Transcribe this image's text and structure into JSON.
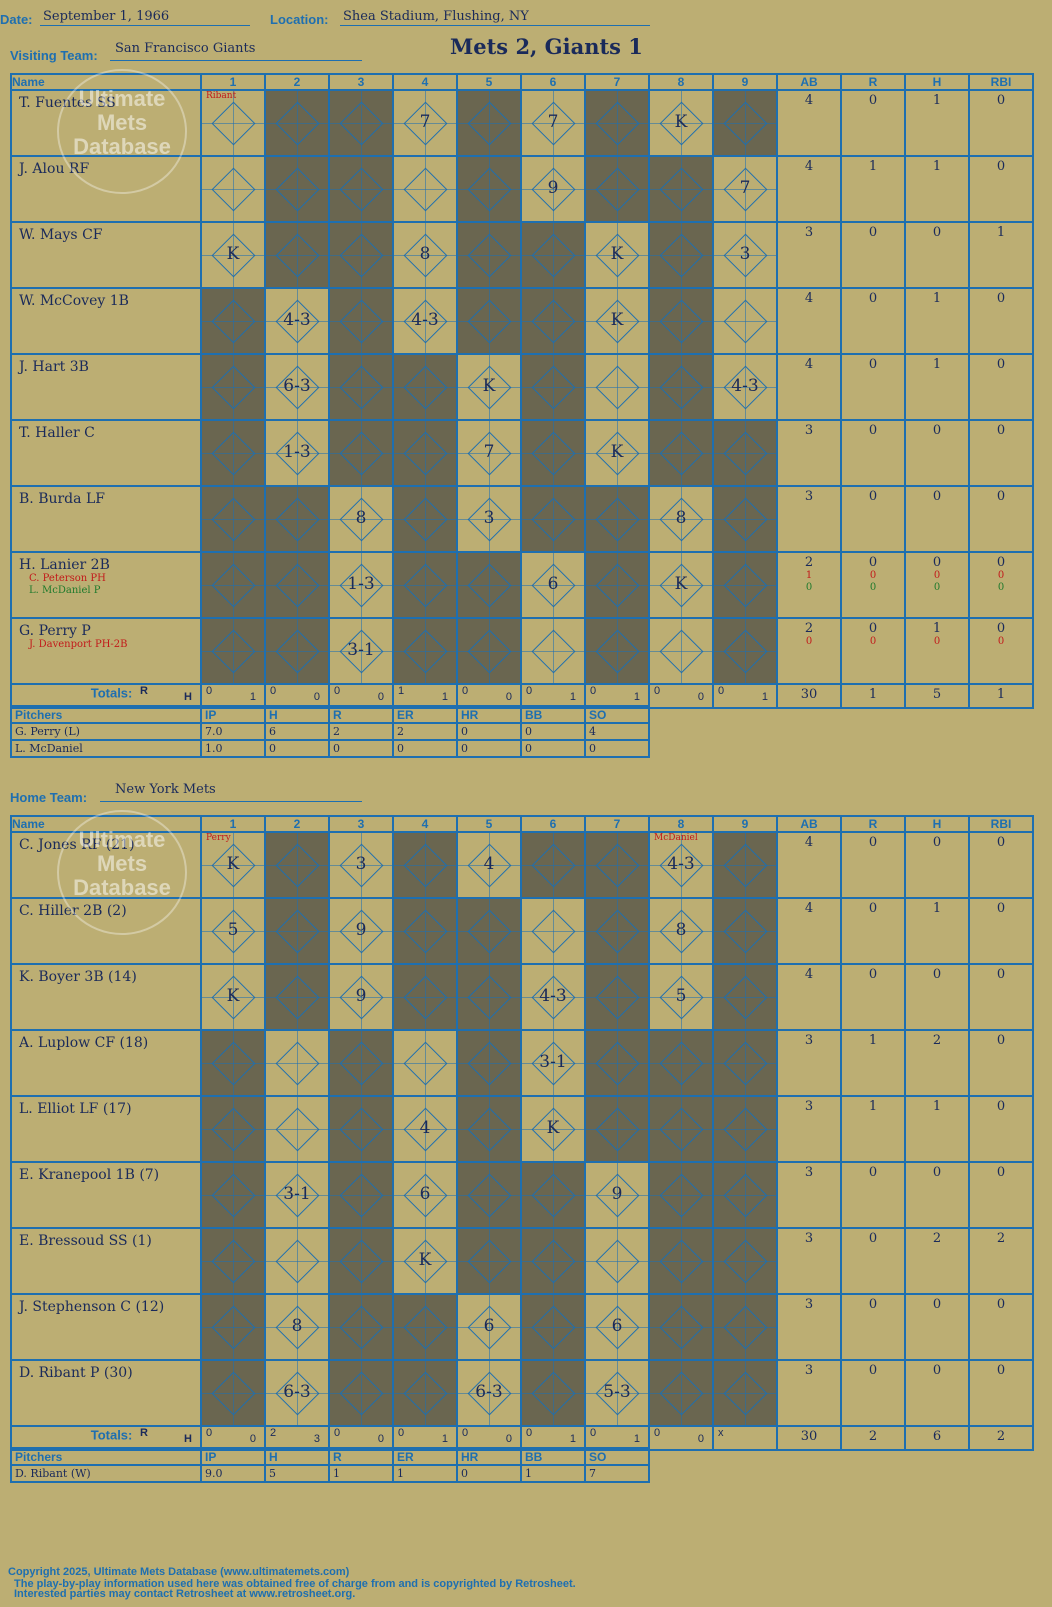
{
  "header": {
    "date_label": "Date:",
    "date": "September 1, 1966",
    "location_label": "Location:",
    "location": "Shea Stadium, Flushing, NY",
    "title": "Mets 2, Giants 1"
  },
  "visiting": {
    "label": "Visiting Team:",
    "team": "San Francisco Giants",
    "columns": [
      "Name",
      "1",
      "2",
      "3",
      "4",
      "5",
      "6",
      "7",
      "8",
      "9",
      "AB",
      "R",
      "H",
      "RBI"
    ],
    "rows": [
      {
        "name": "T. Fuentes SS",
        "stats": [
          "4",
          "0",
          "1",
          "0"
        ],
        "pitcher": "Ribant",
        "cells": {
          "1": "",
          "4": "7",
          "6": "7",
          "8": "K"
        }
      },
      {
        "name": "J. Alou RF",
        "stats": [
          "4",
          "1",
          "1",
          "0"
        ],
        "cells": {
          "1": "",
          "4": "",
          "6": "9",
          "9": "7"
        }
      },
      {
        "name": "W. Mays CF",
        "stats": [
          "3",
          "0",
          "0",
          "1"
        ],
        "cells": {
          "1": "K",
          "4": "8",
          "7": "K",
          "9": "3"
        }
      },
      {
        "name": "W. McCovey 1B",
        "stats": [
          "4",
          "0",
          "1",
          "0"
        ],
        "cells": {
          "2": "4-3",
          "4": "4-3",
          "7": "K",
          "9": ""
        }
      },
      {
        "name": "J. Hart 3B",
        "stats": [
          "4",
          "0",
          "1",
          "0"
        ],
        "cells": {
          "2": "6-3",
          "5": "K",
          "7": "",
          "9": "4-3"
        }
      },
      {
        "name": "T. Haller C",
        "stats": [
          "3",
          "0",
          "0",
          "0"
        ],
        "cells": {
          "2": "1-3",
          "5": "7",
          "7": "K"
        }
      },
      {
        "name": "B. Burda LF",
        "stats": [
          "3",
          "0",
          "0",
          "0"
        ],
        "cells": {
          "3": "8",
          "5": "3",
          "8": "8"
        }
      },
      {
        "name": "H. Lanier 2B",
        "subs": [
          {
            "name": "C. Peterson PH",
            "color": "red",
            "stats": [
              "1",
              "0",
              "0",
              "0"
            ]
          },
          {
            "name": "L. McDaniel P",
            "color": "green",
            "stats": [
              "0",
              "0",
              "0",
              "0"
            ]
          }
        ],
        "stats": [
          "2",
          "0",
          "0",
          "0"
        ],
        "cells": {
          "3": "1-3",
          "6": "6",
          "8": "K"
        }
      },
      {
        "name": "G. Perry P",
        "subs": [
          {
            "name": "J. Davenport PH-2B",
            "color": "red",
            "stats": [
              "0",
              "0",
              "0",
              "0"
            ]
          }
        ],
        "stats": [
          "2",
          "0",
          "1",
          "0"
        ],
        "cells": {
          "3": "3-1",
          "6": "",
          "8": ""
        }
      }
    ],
    "totals_label": "Totals:",
    "rh_r": "R",
    "rh_h": "H",
    "inning_totals": [
      [
        "0",
        "1"
      ],
      [
        "0",
        "0"
      ],
      [
        "0",
        "0"
      ],
      [
        "1",
        "1"
      ],
      [
        "0",
        "0"
      ],
      [
        "0",
        "1"
      ],
      [
        "0",
        "1"
      ],
      [
        "0",
        "0"
      ],
      [
        "0",
        "1"
      ]
    ],
    "total_stats": [
      "30",
      "1",
      "5",
      "1"
    ],
    "pitchers_header": [
      "Pitchers",
      "IP",
      "H",
      "R",
      "ER",
      "HR",
      "BB",
      "SO"
    ],
    "pitchers": [
      [
        "G. Perry (L)",
        "7.0",
        "6",
        "2",
        "2",
        "0",
        "0",
        "4"
      ],
      [
        "L. McDaniel",
        "1.0",
        "0",
        "0",
        "0",
        "0",
        "0",
        "0"
      ]
    ]
  },
  "home": {
    "label": "Home Team:",
    "team": "New York Mets",
    "columns": [
      "Name",
      "1",
      "2",
      "3",
      "4",
      "5",
      "6",
      "7",
      "8",
      "9",
      "AB",
      "R",
      "H",
      "RBI"
    ],
    "rows": [
      {
        "name": "C. Jones RF (21)",
        "stats": [
          "4",
          "0",
          "0",
          "0"
        ],
        "pitcher": "Perry",
        "pitcher8": "McDaniel",
        "cells": {
          "1": "K",
          "3": "3",
          "5": "4",
          "8": "4-3"
        }
      },
      {
        "name": "C. Hiller 2B (2)",
        "stats": [
          "4",
          "0",
          "1",
          "0"
        ],
        "cells": {
          "1": "5",
          "3": "9",
          "6": "",
          "8": "8"
        }
      },
      {
        "name": "K. Boyer 3B (14)",
        "stats": [
          "4",
          "0",
          "0",
          "0"
        ],
        "cells": {
          "1": "K",
          "3": "9",
          "6": "4-3",
          "8": "5"
        }
      },
      {
        "name": "A. Luplow CF (18)",
        "stats": [
          "3",
          "1",
          "2",
          "0"
        ],
        "cells": {
          "2": "",
          "4": "",
          "6": "3-1"
        }
      },
      {
        "name": "L. Elliot LF (17)",
        "stats": [
          "3",
          "1",
          "1",
          "0"
        ],
        "cells": {
          "2": "",
          "4": "4",
          "6": "K"
        }
      },
      {
        "name": "E. Kranepool 1B (7)",
        "stats": [
          "3",
          "0",
          "0",
          "0"
        ],
        "cells": {
          "2": "3-1",
          "4": "6",
          "7": "9"
        }
      },
      {
        "name": "E. Bressoud SS (1)",
        "stats": [
          "3",
          "0",
          "2",
          "2"
        ],
        "cells": {
          "2": "",
          "4": "K",
          "7": ""
        }
      },
      {
        "name": "J. Stephenson C (12)",
        "stats": [
          "3",
          "0",
          "0",
          "0"
        ],
        "cells": {
          "2": "8",
          "5": "6",
          "7": "6"
        }
      },
      {
        "name": "D. Ribant P (30)",
        "stats": [
          "3",
          "0",
          "0",
          "0"
        ],
        "cells": {
          "2": "6-3",
          "5": "6-3",
          "7": "5-3"
        }
      }
    ],
    "totals_label": "Totals:",
    "rh_r": "R",
    "rh_h": "H",
    "inning_totals": [
      [
        "0",
        "0"
      ],
      [
        "2",
        "3"
      ],
      [
        "0",
        "0"
      ],
      [
        "0",
        "1"
      ],
      [
        "0",
        "0"
      ],
      [
        "0",
        "1"
      ],
      [
        "0",
        "1"
      ],
      [
        "0",
        "0"
      ],
      [
        "x",
        ""
      ]
    ],
    "total_stats": [
      "30",
      "2",
      "6",
      "2"
    ],
    "pitchers_header": [
      "Pitchers",
      "IP",
      "H",
      "R",
      "ER",
      "HR",
      "BB",
      "SO"
    ],
    "pitchers": [
      [
        "D. Ribant (W)",
        "9.0",
        "5",
        "1",
        "1",
        "0",
        "1",
        "7"
      ]
    ]
  },
  "watermark": {
    "line1": "Ultimate",
    "line2": "Mets",
    "line3": "Database",
    "url": "ultimatemets.com"
  },
  "footer": {
    "line1": "Copyright 2025, Ultimate Mets Database (www.ultimatemets.com)",
    "line2": "The play-by-play information used here was obtained free of charge from and is copyrighted by Retrosheet.",
    "line3": "Interested parties may contact Retrosheet at www.retrosheet.org."
  }
}
